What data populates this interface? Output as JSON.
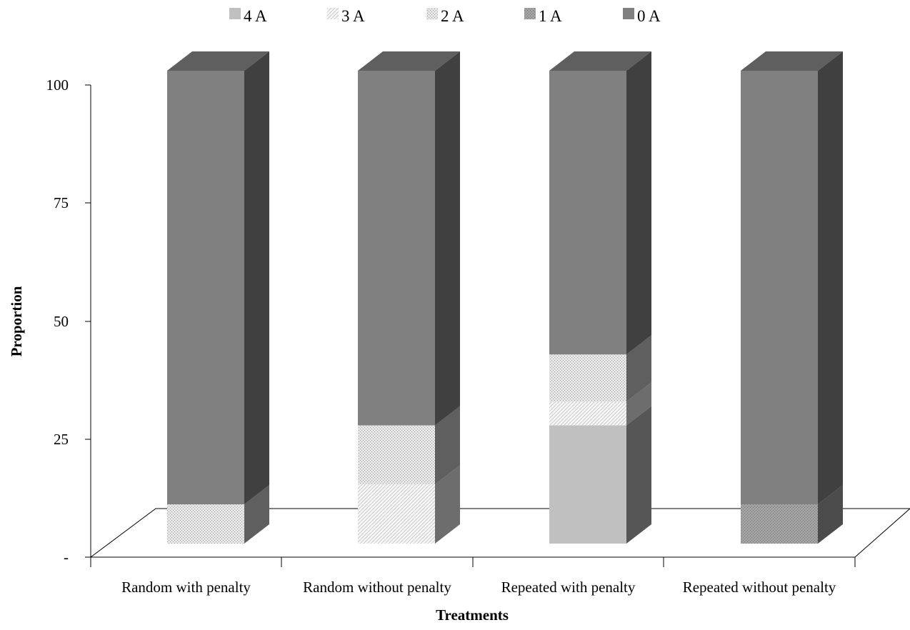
{
  "chart_data": {
    "type": "bar",
    "stacked": true,
    "three_d": true,
    "xlabel": "Treatments",
    "ylabel": "Proportion",
    "ylim": [
      0,
      100
    ],
    "yticks": [
      "-",
      "25",
      "50",
      "75",
      "100"
    ],
    "legend_position": "top",
    "categories": [
      "Random with penalty",
      "Random without penalty",
      "Repeated with penalty",
      "Repeated without penalty"
    ],
    "series": [
      {
        "name": "4 A",
        "values": [
          0,
          0,
          25,
          0
        ]
      },
      {
        "name": "3 A",
        "values": [
          0,
          12.5,
          5,
          0
        ]
      },
      {
        "name": "2 A",
        "values": [
          8.3,
          12.5,
          10,
          0
        ]
      },
      {
        "name": "1 A",
        "values": [
          0,
          0,
          0,
          8.3
        ]
      },
      {
        "name": "0 A",
        "values": [
          91.7,
          75,
          60,
          91.7
        ]
      }
    ],
    "colors": {
      "4 A": "#c0c0c0",
      "3 A": "#f2f2f2",
      "2 A": "#d3d3d3",
      "1 A": "#a6a6a6",
      "0 A": "#808080"
    },
    "grid": false
  }
}
